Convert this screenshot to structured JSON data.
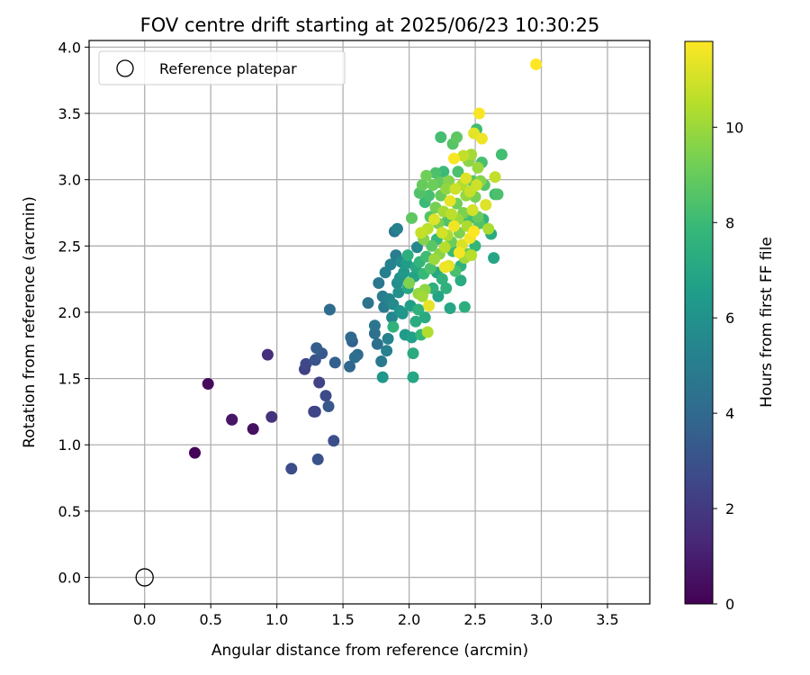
{
  "chart_data": {
    "type": "scatter",
    "title": "FOV centre drift starting at 2025/06/23 10:30:25",
    "xlabel": "Angular distance from reference (arcmin)",
    "ylabel": "Rotation from reference (arcmin)",
    "xlim": [
      -0.42,
      3.82
    ],
    "ylim": [
      -0.2,
      4.05
    ],
    "xticks": [
      0.0,
      0.5,
      1.0,
      1.5,
      2.0,
      2.5,
      3.0,
      3.5
    ],
    "xtick_labels": [
      "0.0",
      "0.5",
      "1.0",
      "1.5",
      "2.0",
      "2.5",
      "3.0",
      "3.5"
    ],
    "yticks": [
      0.0,
      0.5,
      1.0,
      1.5,
      2.0,
      2.5,
      3.0,
      3.5,
      4.0
    ],
    "ytick_labels": [
      "0.0",
      "0.5",
      "1.0",
      "1.5",
      "2.0",
      "2.5",
      "3.0",
      "3.5",
      "4.0"
    ],
    "grid": true,
    "legend": {
      "location": "upper left",
      "entries": [
        "Reference platepar"
      ]
    },
    "reference_point": {
      "x": 0.0,
      "y": 0.0,
      "label": "Reference platepar"
    },
    "colorbar": {
      "label": "Hours from first FF file",
      "colormap": "viridis",
      "range": [
        0,
        11.8
      ],
      "ticks": [
        0,
        2,
        4,
        6,
        8,
        10
      ],
      "tick_labels": [
        "0",
        "2",
        "4",
        "6",
        "8",
        "10"
      ]
    },
    "colormap_stops": [
      "#440154",
      "#482878",
      "#3e4989",
      "#31688e",
      "#26828e",
      "#1f9e89",
      "#35b779",
      "#6ece58",
      "#b5de2b",
      "#fde725"
    ],
    "points": [
      [
        0.38,
        0.94,
        0.1
      ],
      [
        0.48,
        1.46,
        0.3
      ],
      [
        0.66,
        1.19,
        0.6
      ],
      [
        0.66,
        1.19,
        0.7
      ],
      [
        0.82,
        1.12,
        0.5
      ],
      [
        0.93,
        1.68,
        1.6
      ],
      [
        0.96,
        1.21,
        1.7
      ],
      [
        1.11,
        0.82,
        2.8
      ],
      [
        1.21,
        1.57,
        2.3
      ],
      [
        1.22,
        1.61,
        2.6
      ],
      [
        1.28,
        1.25,
        2.2
      ],
      [
        1.29,
        1.25,
        2.5
      ],
      [
        1.31,
        0.89,
        3.0
      ],
      [
        1.29,
        1.64,
        3.1
      ],
      [
        1.32,
        1.47,
        2.4
      ],
      [
        1.3,
        1.73,
        3.5
      ],
      [
        1.34,
        1.69,
        3.3
      ],
      [
        1.37,
        1.37,
        2.7
      ],
      [
        1.39,
        1.29,
        3.2
      ],
      [
        1.4,
        2.02,
        4.2
      ],
      [
        1.43,
        1.03,
        2.9
      ],
      [
        1.44,
        1.62,
        3.6
      ],
      [
        1.55,
        1.59,
        3.9
      ],
      [
        1.56,
        1.81,
        4.0
      ],
      [
        1.57,
        1.78,
        3.7
      ],
      [
        1.59,
        1.66,
        4.3
      ],
      [
        1.61,
        1.68,
        4.1
      ],
      [
        1.69,
        2.07,
        4.5
      ],
      [
        1.74,
        1.84,
        4.4
      ],
      [
        1.74,
        1.9,
        4.6
      ],
      [
        1.76,
        1.76,
        4.3
      ],
      [
        1.77,
        2.22,
        4.7
      ],
      [
        1.79,
        1.63,
        4.8
      ],
      [
        1.8,
        1.51,
        6.2
      ],
      [
        1.8,
        2.12,
        5.0
      ],
      [
        1.81,
        2.04,
        4.9
      ],
      [
        1.82,
        2.3,
        5.1
      ],
      [
        1.83,
        1.71,
        5.2
      ],
      [
        1.84,
        1.8,
        5.3
      ],
      [
        1.85,
        2.1,
        5.4
      ],
      [
        1.86,
        2.36,
        5.2
      ],
      [
        1.87,
        1.96,
        5.5
      ],
      [
        1.88,
        2.06,
        5.6
      ],
      [
        1.88,
        1.89,
        7.6
      ],
      [
        1.89,
        2.61,
        4.6
      ],
      [
        1.9,
        2.43,
        5.0
      ],
      [
        1.91,
        2.22,
        5.8
      ],
      [
        1.91,
        2.63,
        5.2
      ],
      [
        1.92,
        2.15,
        5.9
      ],
      [
        1.93,
        2.26,
        6.0
      ],
      [
        1.93,
        2.01,
        6.1
      ],
      [
        1.94,
        2.38,
        5.7
      ],
      [
        1.95,
        1.99,
        6.2
      ],
      [
        1.96,
        2.3,
        6.3
      ],
      [
        1.97,
        1.83,
        6.4
      ],
      [
        1.98,
        2.37,
        6.5
      ],
      [
        1.99,
        2.18,
        7.0
      ],
      [
        1.99,
        2.43,
        7.4
      ],
      [
        2.0,
        2.22,
        9.5
      ],
      [
        2.01,
        2.05,
        6.6
      ],
      [
        2.02,
        1.81,
        6.7
      ],
      [
        2.02,
        2.71,
        8.8
      ],
      [
        2.03,
        1.69,
        7.2
      ],
      [
        2.03,
        1.51,
        7.0
      ],
      [
        2.04,
        2.27,
        6.8
      ],
      [
        2.05,
        2.34,
        7.1
      ],
      [
        2.05,
        1.93,
        7.3
      ],
      [
        2.06,
        2.49,
        5.5
      ],
      [
        2.07,
        2.02,
        7.5
      ],
      [
        2.07,
        2.14,
        9.9
      ],
      [
        2.08,
        2.9,
        8.5
      ],
      [
        2.08,
        2.38,
        7.7
      ],
      [
        2.09,
        2.6,
        10.8
      ],
      [
        2.09,
        1.83,
        7.8
      ],
      [
        2.1,
        2.12,
        10.1
      ],
      [
        2.1,
        2.96,
        9.0
      ],
      [
        2.11,
        2.29,
        7.9
      ],
      [
        2.11,
        2.55,
        9.6
      ],
      [
        2.12,
        2.83,
        8.0
      ],
      [
        2.12,
        2.17,
        9.8
      ],
      [
        2.12,
        1.96,
        7.2
      ],
      [
        2.13,
        3.03,
        9.2
      ],
      [
        2.13,
        2.42,
        8.1
      ],
      [
        2.14,
        1.85,
        10.4
      ],
      [
        2.14,
        2.63,
        10.6
      ],
      [
        2.15,
        2.05,
        11.4
      ],
      [
        2.15,
        2.88,
        8.3
      ],
      [
        2.16,
        2.33,
        8.4
      ],
      [
        2.16,
        2.72,
        8.6
      ],
      [
        2.17,
        2.5,
        8.7
      ],
      [
        2.18,
        2.96,
        9.1
      ],
      [
        2.18,
        2.18,
        7.4
      ],
      [
        2.19,
        2.7,
        11.2
      ],
      [
        2.19,
        2.4,
        10.0
      ],
      [
        2.2,
        2.79,
        9.3
      ],
      [
        2.2,
        3.05,
        8.4
      ],
      [
        2.21,
        2.55,
        7.9
      ],
      [
        2.21,
        2.3,
        7.1
      ],
      [
        2.22,
        2.67,
        9.4
      ],
      [
        2.22,
        2.12,
        6.8
      ],
      [
        2.23,
        2.98,
        8.9
      ],
      [
        2.23,
        2.44,
        9.7
      ],
      [
        2.24,
        3.32,
        8.2
      ],
      [
        2.24,
        2.88,
        9.0
      ],
      [
        2.25,
        2.6,
        11.0
      ],
      [
        2.25,
        2.25,
        7.6
      ],
      [
        2.26,
        2.76,
        10.2
      ],
      [
        2.26,
        3.06,
        8.0
      ],
      [
        2.27,
        2.49,
        10.5
      ],
      [
        2.27,
        2.34,
        11.5
      ],
      [
        2.28,
        2.93,
        9.8
      ],
      [
        2.28,
        2.18,
        7.5
      ],
      [
        2.29,
        2.69,
        8.5
      ],
      [
        2.29,
        2.58,
        10.3
      ],
      [
        2.3,
        2.99,
        9.6
      ],
      [
        2.3,
        2.35,
        11.3
      ],
      [
        2.31,
        2.84,
        11.4
      ],
      [
        2.31,
        2.03,
        7.0
      ],
      [
        2.32,
        2.74,
        10.6
      ],
      [
        2.32,
        2.53,
        9.1
      ],
      [
        2.33,
        3.27,
        8.6
      ],
      [
        2.33,
        2.46,
        8.0
      ],
      [
        2.34,
        2.65,
        11.5
      ],
      [
        2.34,
        3.16,
        11.7
      ],
      [
        2.35,
        2.93,
        10.9
      ],
      [
        2.35,
        2.31,
        8.3
      ],
      [
        2.36,
        3.32,
        8.8
      ],
      [
        2.36,
        2.82,
        9.2
      ],
      [
        2.37,
        2.7,
        10.0
      ],
      [
        2.37,
        3.06,
        8.4
      ],
      [
        2.38,
        2.45,
        11.6
      ],
      [
        2.38,
        2.6,
        9.5
      ],
      [
        2.39,
        2.35,
        7.6
      ],
      [
        2.39,
        2.24,
        7.3
      ],
      [
        2.4,
        2.96,
        10.4
      ],
      [
        2.4,
        2.51,
        11.1
      ],
      [
        2.41,
        3.18,
        10.7
      ],
      [
        2.41,
        2.75,
        9.4
      ],
      [
        2.42,
        2.41,
        10.1
      ],
      [
        2.42,
        2.04,
        7.4
      ],
      [
        2.43,
        2.88,
        9.9
      ],
      [
        2.43,
        3.01,
        11.2
      ],
      [
        2.44,
        2.65,
        10.3
      ],
      [
        2.44,
        2.44,
        8.9
      ],
      [
        2.45,
        3.14,
        9.7
      ],
      [
        2.45,
        2.7,
        8.2
      ],
      [
        2.46,
        2.91,
        10.8
      ],
      [
        2.46,
        2.56,
        11.6
      ],
      [
        2.47,
        3.19,
        10.2
      ],
      [
        2.47,
        2.43,
        10.5
      ],
      [
        2.48,
        2.99,
        8.7
      ],
      [
        2.48,
        2.77,
        11.0
      ],
      [
        2.49,
        2.61,
        11.8
      ],
      [
        2.49,
        3.35,
        11.3
      ],
      [
        2.5,
        2.87,
        9.3
      ],
      [
        2.5,
        2.5,
        7.8
      ],
      [
        2.51,
        3.38,
        8.1
      ],
      [
        2.51,
        2.96,
        10.9
      ],
      [
        2.52,
        2.72,
        9.0
      ],
      [
        2.52,
        3.09,
        10.0
      ],
      [
        2.53,
        3.5,
        11.7
      ],
      [
        2.53,
        2.67,
        8.5
      ],
      [
        2.54,
        2.99,
        9.6
      ],
      [
        2.55,
        3.31,
        11.5
      ],
      [
        2.55,
        3.13,
        8.3
      ],
      [
        2.56,
        2.7,
        7.7
      ],
      [
        2.57,
        2.96,
        8.6
      ],
      [
        2.58,
        2.81,
        11.2
      ],
      [
        2.6,
        2.63,
        10.3
      ],
      [
        2.62,
        2.59,
        7.2
      ],
      [
        2.64,
        2.41,
        6.9
      ],
      [
        2.65,
        3.02,
        10.7
      ],
      [
        2.65,
        2.89,
        8.1
      ],
      [
        2.67,
        2.89,
        8.4
      ],
      [
        2.7,
        3.19,
        8.2
      ],
      [
        2.96,
        3.87,
        11.8
      ]
    ]
  }
}
